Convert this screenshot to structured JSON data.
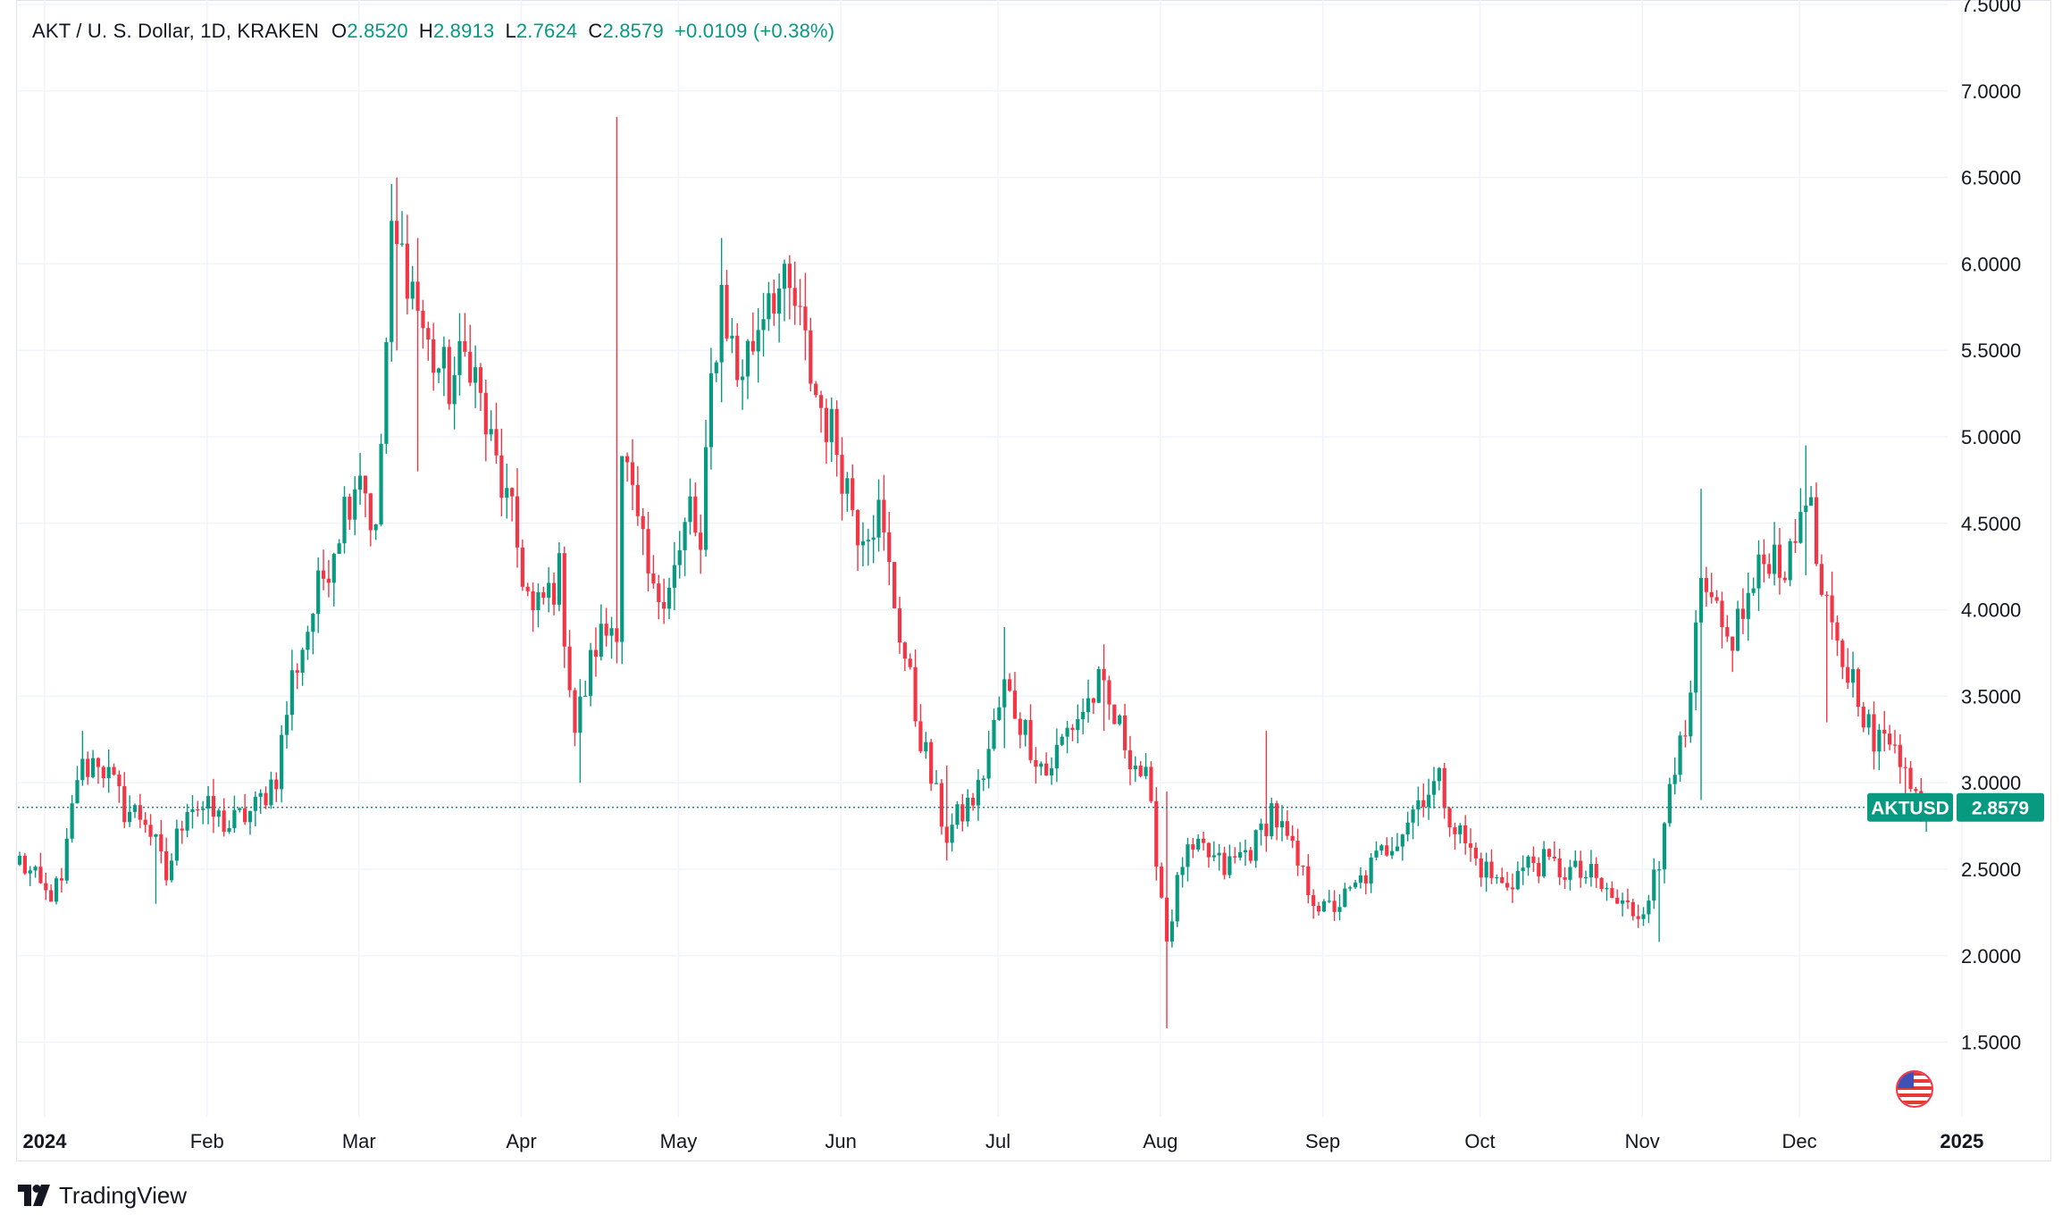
{
  "header": {
    "symbol_desc": "AKT / U. S. Dollar, 1D, KRAKEN",
    "o_label": "O",
    "o_value": "2.8520",
    "h_label": "H",
    "h_value": "2.8913",
    "l_label": "L",
    "l_value": "2.7624",
    "c_label": "C",
    "c_value": "2.8579",
    "change": "+0.0109 (+0.38%)"
  },
  "price_tag": {
    "symbol": "AKTUSD",
    "value": "2.8579"
  },
  "branding": {
    "name": "TradingView"
  },
  "colors": {
    "up": "#089981",
    "down": "#f23645",
    "grid": "#f0f3fa",
    "text": "#131722",
    "line": "#089981"
  },
  "chart_data": {
    "type": "candlestick",
    "ylim": [
      1.25,
      7.5
    ],
    "y_ticks": [
      "7.5000",
      "7.0000",
      "6.5000",
      "6.0000",
      "5.5000",
      "5.0000",
      "4.5000",
      "4.0000",
      "3.5000",
      "3.0000",
      "2.5000",
      "2.0000",
      "1.5000"
    ],
    "x_labels": [
      "2024",
      "Feb",
      "Mar",
      "Apr",
      "May",
      "Jun",
      "Jul",
      "Aug",
      "Sep",
      "Oct",
      "Nov",
      "Dec",
      "2025"
    ],
    "bold_x_labels": [
      "2024",
      "2025"
    ],
    "x_start": "2024-01-01",
    "last_close": 2.8579,
    "anchors": [
      [
        "2024-01-01",
        2.55
      ],
      [
        "2024-01-06",
        2.35
      ],
      [
        "2024-01-09",
        2.4
      ],
      [
        "2024-01-12",
        3.05
      ],
      [
        "2024-01-16",
        3.15
      ],
      [
        "2024-01-21",
        2.85
      ],
      [
        "2024-01-25",
        2.8
      ],
      [
        "2024-01-29",
        2.45
      ],
      [
        "2024-02-02",
        2.9
      ],
      [
        "2024-02-05",
        2.85
      ],
      [
        "2024-02-10",
        2.75
      ],
      [
        "2024-02-15",
        2.85
      ],
      [
        "2024-02-19",
        3.05
      ],
      [
        "2024-02-22",
        3.6
      ],
      [
        "2024-02-28",
        4.2
      ],
      [
        "2024-03-03",
        4.6
      ],
      [
        "2024-03-06",
        4.85
      ],
      [
        "2024-03-09",
        4.4
      ],
      [
        "2024-03-12",
        6.1
      ],
      [
        "2024-03-15",
        6.0
      ],
      [
        "2024-03-19",
        5.5
      ],
      [
        "2024-03-23",
        5.3
      ],
      [
        "2024-03-27",
        5.5
      ],
      [
        "2024-03-30",
        5.05
      ],
      [
        "2024-04-04",
        4.5
      ],
      [
        "2024-04-08",
        3.95
      ],
      [
        "2024-04-13",
        4.2
      ],
      [
        "2024-04-16",
        3.3
      ],
      [
        "2024-04-20",
        3.8
      ],
      [
        "2024-04-24",
        3.95
      ],
      [
        "2024-04-25",
        4.95
      ],
      [
        "2024-04-28",
        4.45
      ],
      [
        "2024-05-01",
        4.05
      ],
      [
        "2024-05-06",
        4.3
      ],
      [
        "2024-05-08",
        4.6
      ],
      [
        "2024-05-10",
        4.3
      ],
      [
        "2024-05-12",
        5.3
      ],
      [
        "2024-05-14",
        5.85
      ],
      [
        "2024-05-17",
        5.35
      ],
      [
        "2024-05-20",
        5.55
      ],
      [
        "2024-05-23",
        5.9
      ],
      [
        "2024-05-28",
        5.75
      ],
      [
        "2024-06-01",
        5.25
      ],
      [
        "2024-06-05",
        4.95
      ],
      [
        "2024-06-09",
        4.5
      ],
      [
        "2024-06-13",
        4.55
      ],
      [
        "2024-06-16",
        4.05
      ],
      [
        "2024-06-20",
        3.4
      ],
      [
        "2024-06-24",
        2.9
      ],
      [
        "2024-06-26",
        2.7
      ],
      [
        "2024-07-02",
        2.95
      ],
      [
        "2024-07-07",
        3.55
      ],
      [
        "2024-07-11",
        3.3
      ],
      [
        "2024-07-15",
        3.05
      ],
      [
        "2024-07-19",
        3.3
      ],
      [
        "2024-07-25",
        3.55
      ],
      [
        "2024-07-29",
        3.3
      ],
      [
        "2024-08-03",
        3.0
      ],
      [
        "2024-08-05",
        2.6
      ],
      [
        "2024-08-07",
        2.1
      ],
      [
        "2024-08-10",
        2.55
      ],
      [
        "2024-08-14",
        2.6
      ],
      [
        "2024-08-18",
        2.5
      ],
      [
        "2024-08-24",
        2.65
      ],
      [
        "2024-08-27",
        2.85
      ],
      [
        "2024-09-02",
        2.45
      ],
      [
        "2024-09-06",
        2.25
      ],
      [
        "2024-09-11",
        2.35
      ],
      [
        "2024-09-16",
        2.55
      ],
      [
        "2024-09-21",
        2.75
      ],
      [
        "2024-09-25",
        2.95
      ],
      [
        "2024-09-28",
        3.0
      ],
      [
        "2024-10-01",
        2.75
      ],
      [
        "2024-10-05",
        2.55
      ],
      [
        "2024-10-10",
        2.4
      ],
      [
        "2024-10-16",
        2.55
      ],
      [
        "2024-10-21",
        2.5
      ],
      [
        "2024-10-27",
        2.45
      ],
      [
        "2024-11-01",
        2.3
      ],
      [
        "2024-11-05",
        2.25
      ],
      [
        "2024-11-09",
        2.5
      ],
      [
        "2024-11-11",
        3.1
      ],
      [
        "2024-11-14",
        3.2
      ],
      [
        "2024-11-17",
        4.1
      ],
      [
        "2024-11-22",
        3.8
      ],
      [
        "2024-11-26",
        4.05
      ],
      [
        "2024-11-30",
        4.35
      ],
      [
        "2024-12-04",
        4.25
      ],
      [
        "2024-12-07",
        4.75
      ],
      [
        "2024-12-10",
        4.05
      ],
      [
        "2024-12-13",
        3.75
      ],
      [
        "2024-12-17",
        3.55
      ],
      [
        "2024-12-20",
        3.2
      ],
      [
        "2024-12-24",
        3.3
      ],
      [
        "2024-12-27",
        2.95
      ],
      [
        "2024-12-30",
        2.8579
      ]
    ],
    "spikes": [
      [
        "2024-01-13",
        3.3,
        3.0
      ],
      [
        "2024-01-27",
        2.55,
        2.3
      ],
      [
        "2024-03-13",
        6.5,
        5.5
      ],
      [
        "2024-03-17",
        6.15,
        4.8
      ],
      [
        "2024-04-24",
        6.85,
        4.1
      ],
      [
        "2024-04-17",
        3.3,
        3.0
      ],
      [
        "2024-05-14",
        6.15,
        5.2
      ],
      [
        "2024-06-26",
        3.1,
        2.55
      ],
      [
        "2024-07-07",
        3.9,
        3.2
      ],
      [
        "2024-07-26",
        3.8,
        3.3
      ],
      [
        "2024-08-07",
        2.95,
        1.58
      ],
      [
        "2024-08-26",
        3.3,
        2.6
      ],
      [
        "2024-11-09",
        2.5,
        2.08
      ],
      [
        "2024-11-17",
        4.7,
        2.9
      ],
      [
        "2024-12-07",
        4.95,
        4.2
      ],
      [
        "2024-12-11",
        4.1,
        3.35
      ],
      [
        "2024-12-26",
        3.1,
        2.8
      ]
    ]
  }
}
